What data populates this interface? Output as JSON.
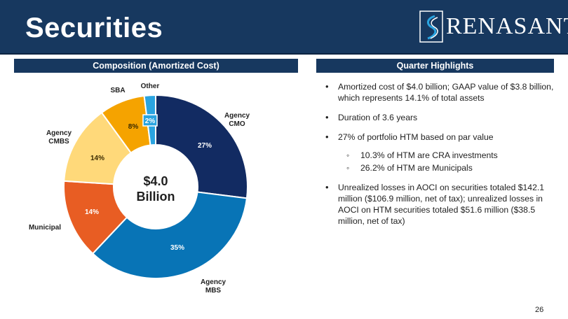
{
  "header": {
    "title": "Securities",
    "logo_text": "RENASANT"
  },
  "left_panel": {
    "title": "Composition (Amortized Cost)"
  },
  "right_panel": {
    "title": "Quarter Highlights",
    "bullets": [
      {
        "text": "Amortized cost of $4.0 billion; GAAP value of $3.8 billion, which represents 14.1% of total assets"
      },
      {
        "text": "Duration of 3.6 years"
      },
      {
        "text": "27% of portfolio HTM based on par value",
        "sub": [
          "10.3% of HTM are CRA investments",
          "26.2% of HTM are Municipals"
        ]
      },
      {
        "text": "Unrealized losses in AOCI on securities totaled $142.1 million ($106.9 million, net of tax); unrealized losses in AOCI on HTM securities totaled $51.6 million ($38.5 million, net of tax)"
      }
    ]
  },
  "page_number": "26",
  "chart_data": {
    "type": "pie",
    "donut": true,
    "center_label": [
      "$4.0",
      "Billion"
    ],
    "slices": [
      {
        "label": "Agency CMO",
        "value": 27,
        "value_label": "27%",
        "color": "#122b62"
      },
      {
        "label": "Agency MBS",
        "value": 35,
        "value_label": "35%",
        "color": "#0874b6"
      },
      {
        "label": "Municipal",
        "value": 14,
        "value_label": "14%",
        "color": "#e85d23"
      },
      {
        "label": "Agency CMBS",
        "value": 14,
        "value_label": "14%",
        "color": "#ffd97a"
      },
      {
        "label": "SBA",
        "value": 8,
        "value_label": "8%",
        "color": "#f5a300"
      },
      {
        "label": "Other",
        "value": 2,
        "value_label": "2%",
        "color": "#2aa4e0"
      }
    ]
  }
}
